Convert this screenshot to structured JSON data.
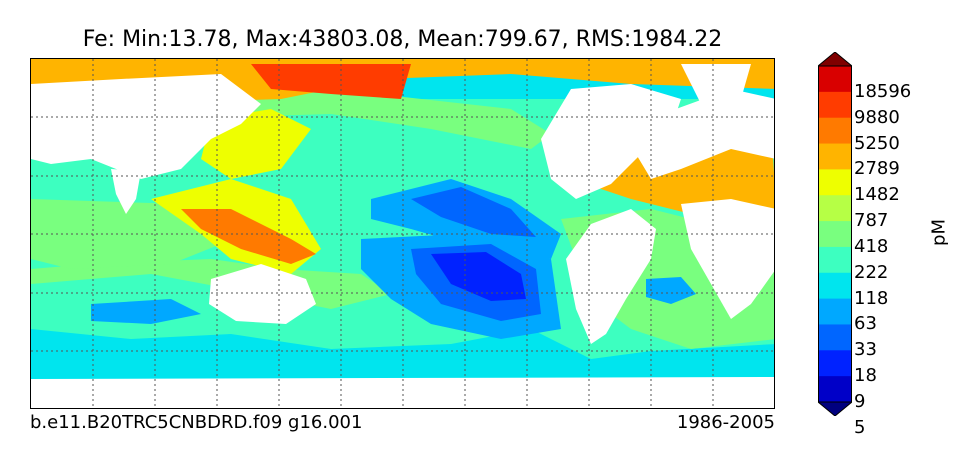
{
  "title": "Fe: Min:13.78, Max:43803.08, Mean:799.67, RMS:1984.22",
  "footer": {
    "run": "b.e11.B20TRC5CNBDRD.f09 g16.001",
    "period": "1986-2005"
  },
  "colorbar": {
    "unit": "pM",
    "ticks": [
      "18596",
      "9880",
      "5250",
      "2789",
      "1482",
      "787",
      "418",
      "222",
      "118",
      "63",
      "33",
      "18",
      "9",
      "5"
    ],
    "colors": [
      "#00007f",
      "#0000c8",
      "#0022ff",
      "#0066ff",
      "#00a8ff",
      "#00e5ee",
      "#3dffc0",
      "#79ff7f",
      "#b6ff45",
      "#eeff00",
      "#ffb400",
      "#ff7a00",
      "#ff3c00",
      "#d90000",
      "#7f0000"
    ]
  },
  "map_colors": {
    "ocean_low": "#00e5ee",
    "ocean_mid": "#3dffc0",
    "ocean_high": "#79ff7f",
    "gyre_blue": "#0066ff",
    "gyre_deep": "#0022ff",
    "coastal_yellow": "#eeff00",
    "coastal_orange": "#ffb400",
    "coastal_red": "#ff3c00",
    "land": "#ffffff"
  }
}
